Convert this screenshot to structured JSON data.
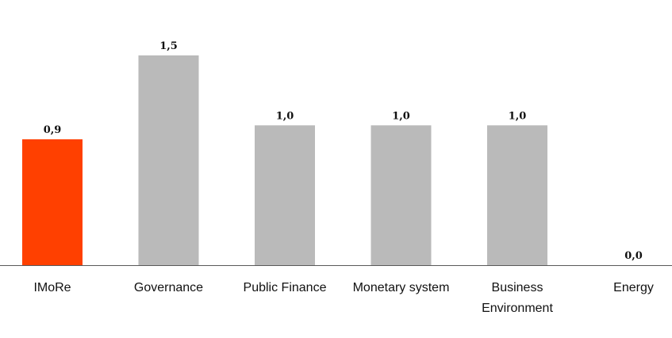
{
  "chart_data": {
    "type": "bar",
    "categories": [
      [
        "IMoRe"
      ],
      [
        "Governance"
      ],
      [
        "Public Finance"
      ],
      [
        "Monetary system"
      ],
      [
        "Business",
        "Environment"
      ],
      [
        "Energy"
      ]
    ],
    "values": [
      0.9,
      1.5,
      1.0,
      1.0,
      1.0,
      0.0
    ],
    "value_labels": [
      "0,9",
      "1,5",
      "1,0",
      "1,0",
      "1,0",
      "0,0"
    ],
    "ylim": [
      0,
      1.5
    ],
    "grid": false,
    "legend": "none",
    "colors": {
      "highlight": "#FF4000",
      "default": "#BABABA",
      "axis": "#595959"
    },
    "highlight_index": 0
  }
}
